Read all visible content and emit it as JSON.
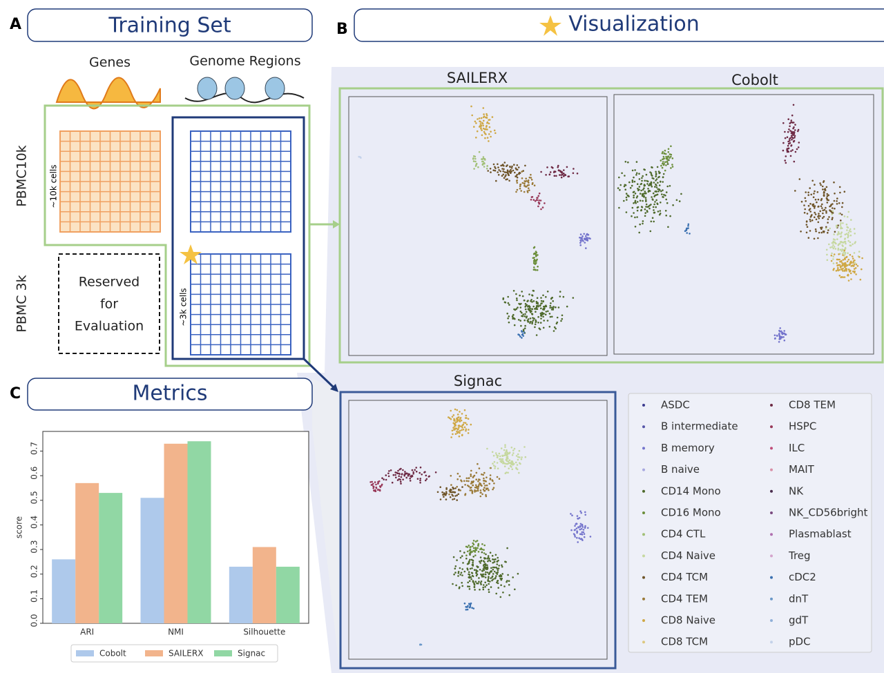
{
  "panels": [
    {
      "letter": "A",
      "title": "Training Set"
    },
    {
      "letter": "B",
      "title": "Visualization"
    },
    {
      "letter": "C",
      "title": "Metrics"
    }
  ],
  "training_set": {
    "modalities": [
      "Genes",
      "Genome Regions"
    ],
    "datasets": [
      "PBMC10k",
      "PBMC 3k"
    ],
    "cell_counts": [
      "~10k cells",
      "~3k cells"
    ],
    "reserved": [
      "Reserved",
      "for",
      "Evaluation"
    ]
  },
  "visualization": {
    "embeddings": [
      "SAILERX",
      "Cobolt",
      "Signac"
    ],
    "legend": [
      {
        "name": "ASDC",
        "color": "#3b3b8f"
      },
      {
        "name": "B intermediate",
        "color": "#5656a8"
      },
      {
        "name": "B memory",
        "color": "#7474cc"
      },
      {
        "name": "B naive",
        "color": "#a8a8e0"
      },
      {
        "name": "CD14 Mono",
        "color": "#4f6a2c"
      },
      {
        "name": "CD16 Mono",
        "color": "#6b8e3a"
      },
      {
        "name": "CD4 CTL",
        "color": "#a2c078"
      },
      {
        "name": "CD4 Naive",
        "color": "#c6d8a0"
      },
      {
        "name": "CD4 TCM",
        "color": "#6e5428"
      },
      {
        "name": "CD4 TEM",
        "color": "#9a7a38"
      },
      {
        "name": "CD8 Naive",
        "color": "#cfa845"
      },
      {
        "name": "CD8 TCM",
        "color": "#ddc880"
      },
      {
        "name": "CD8 TEM",
        "color": "#6e2a44"
      },
      {
        "name": "HSPC",
        "color": "#983858"
      },
      {
        "name": "ILC",
        "color": "#c04c78"
      },
      {
        "name": "MAIT",
        "color": "#d890a8"
      },
      {
        "name": "NK",
        "color": "#4a2e4e"
      },
      {
        "name": "NK_CD56bright",
        "color": "#7a4a80"
      },
      {
        "name": "Plasmablast",
        "color": "#b070b0"
      },
      {
        "name": "Treg",
        "color": "#d4a4cc"
      },
      {
        "name": "cDC2",
        "color": "#3a70b0"
      },
      {
        "name": "dnT",
        "color": "#6a98c8"
      },
      {
        "name": "gdT",
        "color": "#90b0d8"
      },
      {
        "name": "pDC",
        "color": "#c4d2ea"
      }
    ]
  },
  "chart_data": {
    "type": "bar",
    "categories": [
      "ARI",
      "NMI",
      "Silhouette"
    ],
    "ylabel": "score",
    "series": [
      {
        "name": "Cobolt",
        "color": "#aec9eb",
        "values": [
          0.26,
          0.51,
          0.23
        ]
      },
      {
        "name": "SAILERX",
        "color": "#f2b48c",
        "values": [
          0.57,
          0.73,
          0.31
        ]
      },
      {
        "name": "Signac",
        "color": "#91d7a4",
        "values": [
          0.53,
          0.74,
          0.23
        ]
      }
    ],
    "ylim": [
      0,
      0.78
    ],
    "yticks": [
      {
        "value": 0,
        "label": "0.0"
      },
      0.1,
      0.2,
      0.3,
      0.4,
      0.5,
      0.6,
      0.7
    ]
  }
}
